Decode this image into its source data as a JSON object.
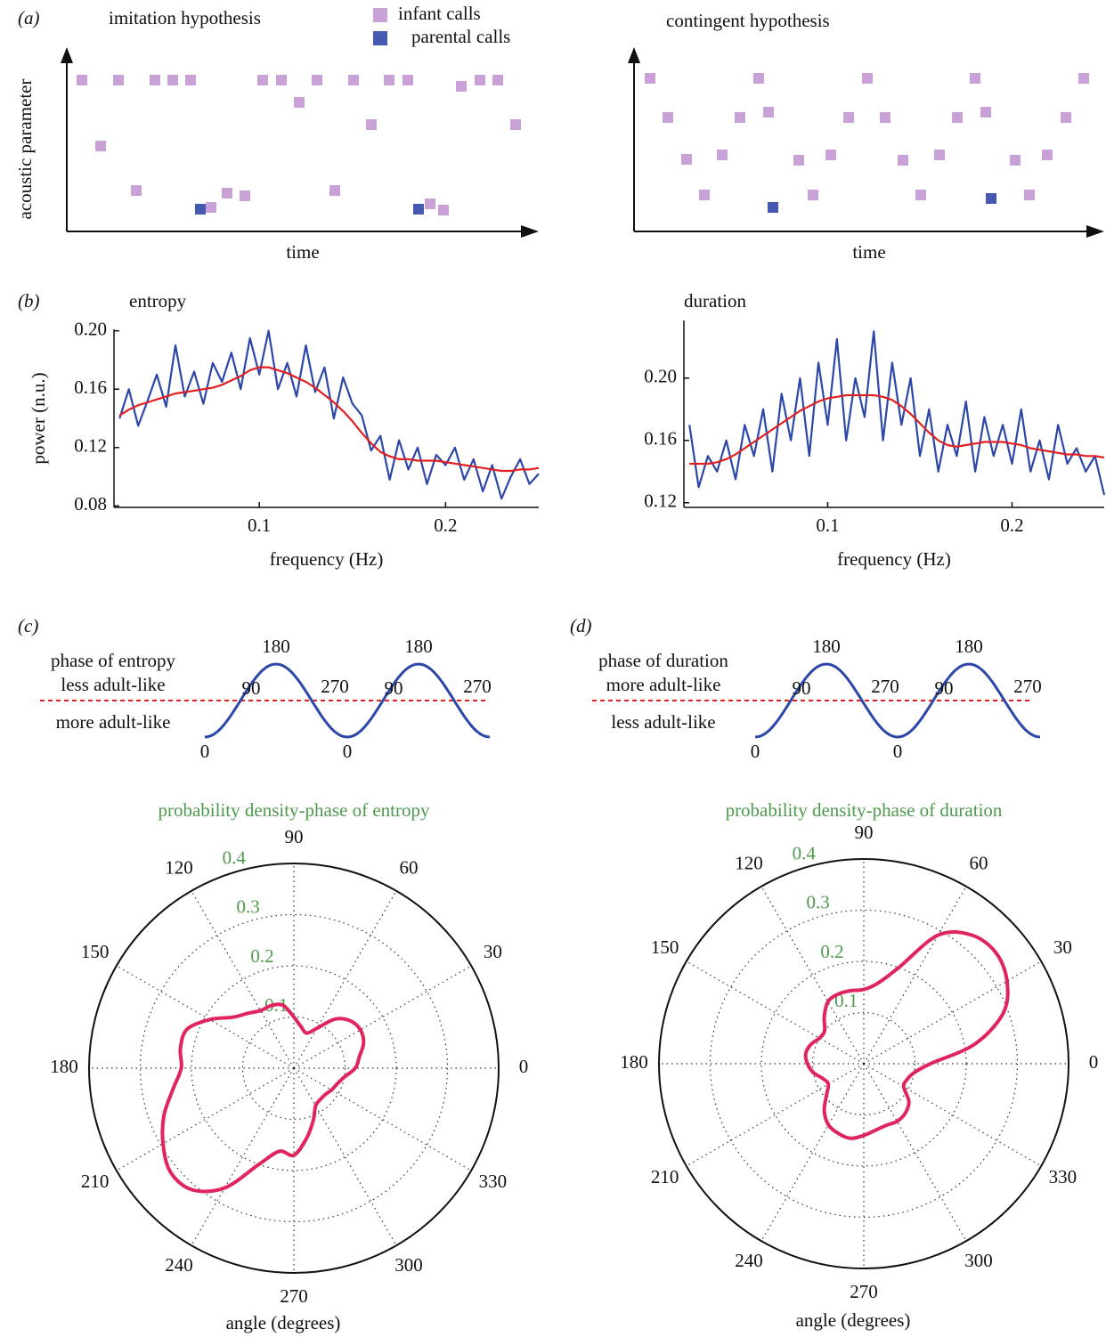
{
  "chart_data": [
    {
      "type": "scatter",
      "panel": "(a)",
      "title": "imitation hypothesis",
      "xlabel": "time",
      "ylabel": "acoustic parameter",
      "legend": true,
      "xlim": [
        0,
        53
      ],
      "ylim": [
        0,
        20.5
      ],
      "series": [
        {
          "name": "infant calls",
          "color": "#c8a2d6",
          "x": [
            1.7,
            3.8,
            5.8,
            7.8,
            9.9,
            11.9,
            13.9,
            16.2,
            18,
            20,
            22,
            24.1,
            26.1,
            28.1,
            30.1,
            32.2,
            34.2,
            36.2,
            38.3,
            40.8,
            42.3,
            44.3,
            46.4,
            48.4,
            50.4
          ],
          "values": [
            17,
            9.6,
            17,
            4.6,
            17,
            17,
            17,
            2.7,
            4.3,
            4,
            17,
            17,
            14.5,
            17,
            4.6,
            17,
            12,
            17,
            17,
            3.1,
            2.4,
            16.3,
            17,
            17,
            12
          ]
        },
        {
          "name": "parental calls",
          "color": "#4659b0",
          "x": [
            15,
            39.5
          ],
          "values": [
            2.5,
            2.5
          ]
        }
      ]
    },
    {
      "type": "scatter",
      "title": "contingent hypothesis",
      "xlabel": "time",
      "legend": false,
      "xlim": [
        0,
        53
      ],
      "ylim": [
        0,
        20.5
      ],
      "series": [
        {
          "color": "#c8a2d6",
          "x": [
            1.8,
            3.8,
            5.9,
            7.9,
            9.9,
            11.9,
            14,
            15.1,
            18.5,
            20.1,
            22.1,
            24.1,
            26.2,
            28.2,
            30.2,
            32.2,
            34.3,
            36.3,
            38.3,
            39.5,
            42.8,
            44.4,
            46.4,
            48.5,
            50.5
          ],
          "values": [
            17.2,
            12.8,
            8.1,
            4.1,
            8.6,
            12.8,
            17.2,
            13.4,
            8,
            4.1,
            8.6,
            12.8,
            17.2,
            12.8,
            8,
            4.1,
            8.6,
            12.8,
            17.2,
            13.4,
            8,
            4.1,
            8.6,
            12.8,
            17.2
          ]
        },
        {
          "color": "#4659b0",
          "x": [
            15.6,
            40.1
          ],
          "values": [
            2.7,
            3.7
          ]
        }
      ]
    },
    {
      "type": "line",
      "panel": "(b)",
      "title": "entropy",
      "xlabel": "frequency (Hz)",
      "ylabel": "power (n.u.)",
      "xlim": [
        0.022,
        0.25
      ],
      "ylim": [
        0.079,
        0.201
      ],
      "xticks": [
        0.1,
        0.2
      ],
      "yticks": [
        0.08,
        0.12,
        0.16,
        {
          "value": 0.2,
          "label": "0.20"
        }
      ],
      "x": [
        0.025,
        0.03,
        0.035,
        0.04,
        0.045,
        0.05,
        0.055,
        0.06,
        0.065,
        0.07,
        0.075,
        0.08,
        0.085,
        0.09,
        0.095,
        0.1,
        0.105,
        0.11,
        0.115,
        0.12,
        0.125,
        0.13,
        0.135,
        0.14,
        0.145,
        0.15,
        0.155,
        0.16,
        0.165,
        0.17,
        0.175,
        0.18,
        0.185,
        0.19,
        0.195,
        0.2,
        0.205,
        0.21,
        0.215,
        0.22,
        0.225,
        0.23,
        0.235,
        0.24,
        0.245,
        0.25
      ],
      "series": [
        {
          "color": "#2c47a8",
          "values": [
            0.14,
            0.16,
            0.135,
            0.152,
            0.17,
            0.148,
            0.19,
            0.155,
            0.172,
            0.15,
            0.178,
            0.165,
            0.185,
            0.16,
            0.195,
            0.17,
            0.2,
            0.16,
            0.178,
            0.155,
            0.19,
            0.158,
            0.175,
            0.14,
            0.168,
            0.15,
            0.142,
            0.118,
            0.128,
            0.098,
            0.125,
            0.105,
            0.12,
            0.095,
            0.115,
            0.108,
            0.12,
            0.098,
            0.112,
            0.09,
            0.108,
            0.085,
            0.1,
            0.112,
            0.095,
            0.102
          ]
        },
        {
          "color": "#e02020",
          "values": [
            0.142,
            0.146,
            0.149,
            0.151,
            0.153,
            0.155,
            0.157,
            0.158,
            0.159,
            0.16,
            0.161,
            0.163,
            0.166,
            0.169,
            0.173,
            0.175,
            0.175,
            0.173,
            0.171,
            0.168,
            0.165,
            0.161,
            0.156,
            0.151,
            0.145,
            0.138,
            0.13,
            0.123,
            0.117,
            0.114,
            0.112,
            0.112,
            0.111,
            0.111,
            0.111,
            0.11,
            0.109,
            0.108,
            0.107,
            0.106,
            0.105,
            0.104,
            0.104,
            0.105,
            0.105,
            0.106
          ]
        }
      ]
    },
    {
      "type": "line",
      "title": "duration",
      "xlabel": "frequency (Hz)",
      "xlim": [
        0.022,
        0.25
      ],
      "ylim": [
        0.117,
        0.237
      ],
      "xticks": [
        0.1,
        0.2
      ],
      "yticks": [
        0.12,
        0.16,
        {
          "value": 0.2,
          "label": "0.20"
        }
      ],
      "x": [
        0.025,
        0.03,
        0.035,
        0.04,
        0.045,
        0.05,
        0.055,
        0.06,
        0.065,
        0.07,
        0.075,
        0.08,
        0.085,
        0.09,
        0.095,
        0.1,
        0.105,
        0.11,
        0.115,
        0.12,
        0.125,
        0.13,
        0.135,
        0.14,
        0.145,
        0.15,
        0.155,
        0.16,
        0.165,
        0.17,
        0.175,
        0.18,
        0.185,
        0.19,
        0.195,
        0.2,
        0.205,
        0.21,
        0.215,
        0.22,
        0.225,
        0.23,
        0.235,
        0.24,
        0.245,
        0.25
      ],
      "series": [
        {
          "color": "#2c47a8",
          "values": [
            0.17,
            0.13,
            0.15,
            0.14,
            0.16,
            0.135,
            0.17,
            0.15,
            0.18,
            0.14,
            0.19,
            0.16,
            0.2,
            0.15,
            0.21,
            0.17,
            0.225,
            0.16,
            0.2,
            0.175,
            0.23,
            0.16,
            0.21,
            0.17,
            0.2,
            0.15,
            0.18,
            0.14,
            0.17,
            0.15,
            0.185,
            0.14,
            0.175,
            0.15,
            0.17,
            0.145,
            0.18,
            0.14,
            0.16,
            0.135,
            0.17,
            0.145,
            0.155,
            0.14,
            0.15,
            0.125
          ]
        },
        {
          "color": "#e02020",
          "values": [
            0.145,
            0.145,
            0.145,
            0.146,
            0.148,
            0.151,
            0.155,
            0.159,
            0.163,
            0.167,
            0.171,
            0.175,
            0.179,
            0.182,
            0.185,
            0.187,
            0.188,
            0.189,
            0.189,
            0.189,
            0.189,
            0.188,
            0.186,
            0.182,
            0.177,
            0.171,
            0.165,
            0.16,
            0.157,
            0.156,
            0.157,
            0.158,
            0.159,
            0.159,
            0.159,
            0.158,
            0.157,
            0.155,
            0.154,
            0.153,
            0.152,
            0.151,
            0.151,
            0.15,
            0.15,
            0.149
          ]
        }
      ]
    },
    {
      "type": "phase",
      "panel": "(c)",
      "title": "phase of entropy",
      "above_label": "less adult-like",
      "below_label": "more adult-like",
      "phase_labels": [
        0,
        90,
        180,
        270,
        0,
        90,
        180,
        270
      ],
      "color": "#2c47a8",
      "line_color": "#e02020"
    },
    {
      "type": "phase",
      "panel": "(d)",
      "title": "phase of duration",
      "above_label": "more adult-like",
      "below_label": "less adult-like",
      "phase_labels": [
        0,
        90,
        180,
        270,
        0,
        90,
        180,
        270
      ],
      "color": "#2c47a8",
      "line_color": "#e02020"
    },
    {
      "type": "polar",
      "title": "probability density-phase of entropy",
      "title_color": "#4d9a4d",
      "xlabel": "angle (degrees)",
      "grid": true,
      "rlim": [
        0,
        0.4
      ],
      "rticks": [
        0.1,
        0.2,
        0.3,
        0.4
      ],
      "thetaticks": [
        0,
        30,
        60,
        90,
        120,
        150,
        180,
        210,
        240,
        270,
        300,
        330
      ],
      "theta": [
        0,
        10,
        20,
        30,
        40,
        50,
        60,
        70,
        80,
        90,
        100,
        110,
        120,
        130,
        140,
        150,
        160,
        170,
        180,
        190,
        200,
        210,
        220,
        230,
        240,
        250,
        260,
        270,
        280,
        290,
        300,
        310,
        320,
        330,
        340,
        350
      ],
      "series": [
        {
          "color": "#e0245e",
          "values": [
            0.12,
            0.13,
            0.145,
            0.15,
            0.144,
            0.125,
            0.09,
            0.073,
            0.082,
            0.1,
            0.125,
            0.13,
            0.13,
            0.14,
            0.155,
            0.19,
            0.222,
            0.225,
            0.22,
            0.24,
            0.27,
            0.295,
            0.315,
            0.31,
            0.27,
            0.2,
            0.165,
            0.17,
            0.14,
            0.11,
            0.085,
            0.08,
            0.08,
            0.085,
            0.09,
            0.1
          ]
        }
      ]
    },
    {
      "type": "polar",
      "title": "probability density-phase of duration",
      "title_color": "#4d9a4d",
      "xlabel": "angle (degrees)",
      "grid": true,
      "rlim": [
        0,
        0.4
      ],
      "rticks": [
        0.1,
        0.2,
        0.3,
        0.4
      ],
      "thetaticks": [
        0,
        30,
        60,
        90,
        120,
        150,
        180,
        210,
        240,
        270,
        300,
        330
      ],
      "theta": [
        0,
        10,
        20,
        30,
        40,
        50,
        60,
        70,
        80,
        90,
        100,
        110,
        120,
        130,
        140,
        150,
        160,
        170,
        180,
        190,
        200,
        210,
        220,
        230,
        240,
        250,
        260,
        270,
        280,
        290,
        300,
        310,
        320,
        330,
        340,
        350
      ],
      "series": [
        {
          "color": "#e0245e",
          "values": [
            0.13,
            0.22,
            0.29,
            0.323,
            0.337,
            0.328,
            0.29,
            0.2,
            0.16,
            0.145,
            0.145,
            0.145,
            0.14,
            0.12,
            0.1,
            0.1,
            0.11,
            0.115,
            0.11,
            0.1,
            0.085,
            0.08,
            0.095,
            0.12,
            0.138,
            0.145,
            0.148,
            0.14,
            0.132,
            0.128,
            0.13,
            0.126,
            0.115,
            0.09,
            0.09,
            0.1
          ]
        }
      ]
    }
  ]
}
